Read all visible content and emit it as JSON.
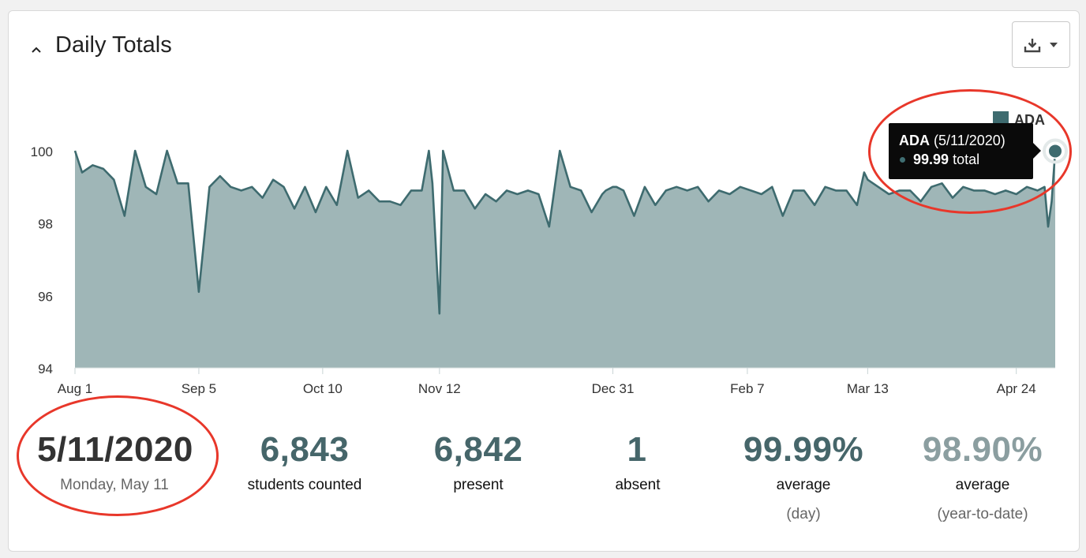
{
  "panel": {
    "title": "Daily Totals"
  },
  "icons": {
    "collapse": "chevron-up-icon",
    "download": "download-tray-icon",
    "dropdown": "caret-down-icon"
  },
  "colors": {
    "line": "#3e6b6f",
    "area": "#9fb6b7",
    "highlight": "#e8372a",
    "tooltip_bg": "#0a0a0a"
  },
  "chart_data": {
    "type": "area",
    "title": "",
    "xlabel": "",
    "ylabel": "",
    "ylim": [
      94,
      100.4
    ],
    "yticks": [
      94,
      96,
      98,
      100
    ],
    "xtick_labels": [
      "Aug 1",
      "Sep 5",
      "Oct 10",
      "Nov 12",
      "Dec 31",
      "Feb 7",
      "Mar 13",
      "Apr 24"
    ],
    "xtick_day_index": [
      0,
      35,
      70,
      103,
      152,
      190,
      224,
      266
    ],
    "grid": false,
    "legend": {
      "position": "top-right",
      "entries": [
        "ADA"
      ]
    },
    "series": [
      {
        "name": "ADA",
        "day_index": [
          0,
          2,
          5,
          8,
          11,
          14,
          17,
          20,
          23,
          26,
          29,
          32,
          35,
          38,
          41,
          44,
          47,
          50,
          53,
          56,
          59,
          62,
          65,
          68,
          71,
          74,
          77,
          80,
          83,
          86,
          89,
          92,
          95,
          98,
          100,
          101,
          103,
          104,
          107,
          110,
          113,
          116,
          119,
          122,
          125,
          128,
          131,
          134,
          137,
          140,
          143,
          146,
          149,
          150,
          152,
          153,
          155,
          158,
          161,
          164,
          167,
          170,
          173,
          176,
          179,
          182,
          185,
          188,
          191,
          194,
          197,
          200,
          203,
          206,
          209,
          212,
          215,
          218,
          221,
          223,
          224,
          227,
          230,
          233,
          236,
          239,
          242,
          245,
          248,
          251,
          254,
          257,
          260,
          263,
          266,
          269,
          272,
          274,
          275,
          276,
          277
        ],
        "values": [
          100,
          99.4,
          99.6,
          99.5,
          99.2,
          98.2,
          100,
          99.0,
          98.8,
          100,
          99.1,
          99.1,
          96.1,
          99.0,
          99.3,
          99.0,
          98.9,
          99.0,
          98.7,
          99.2,
          99.0,
          98.4,
          99.0,
          98.3,
          99.0,
          98.5,
          100,
          98.7,
          98.9,
          98.6,
          98.6,
          98.5,
          98.9,
          98.9,
          100,
          99.1,
          95.5,
          100,
          98.9,
          98.9,
          98.4,
          98.8,
          98.6,
          98.9,
          98.8,
          98.9,
          98.8,
          97.9,
          100,
          99.0,
          98.9,
          98.3,
          98.8,
          98.9,
          99.0,
          99.0,
          98.9,
          98.2,
          99.0,
          98.5,
          98.9,
          99.0,
          98.9,
          99.0,
          98.6,
          98.9,
          98.8,
          99.0,
          98.9,
          98.8,
          99.0,
          98.2,
          98.9,
          98.9,
          98.5,
          99.0,
          98.9,
          98.9,
          98.5,
          99.4,
          99.2,
          99.0,
          98.8,
          98.9,
          98.9,
          98.6,
          99.0,
          99.1,
          98.7,
          99.0,
          98.9,
          98.9,
          98.8,
          98.9,
          98.8,
          99.0,
          98.9,
          99.0,
          97.9,
          98.6,
          99.99
        ]
      }
    ],
    "tooltip": {
      "series": "ADA",
      "date": "(5/11/2020)",
      "value": "99.99",
      "unit": "total"
    }
  },
  "stats": [
    {
      "value": "5/11/2020",
      "label": "Monday, May 11",
      "sublabel": ""
    },
    {
      "value": "6,843",
      "label": "students counted",
      "sublabel": ""
    },
    {
      "value": "6,842",
      "label": "present",
      "sublabel": ""
    },
    {
      "value": "1",
      "label": "absent",
      "sublabel": ""
    },
    {
      "value": "99.99%",
      "label": "average",
      "sublabel": "(day)"
    },
    {
      "value": "98.90%",
      "label": "average",
      "sublabel": "(year-to-date)"
    }
  ]
}
